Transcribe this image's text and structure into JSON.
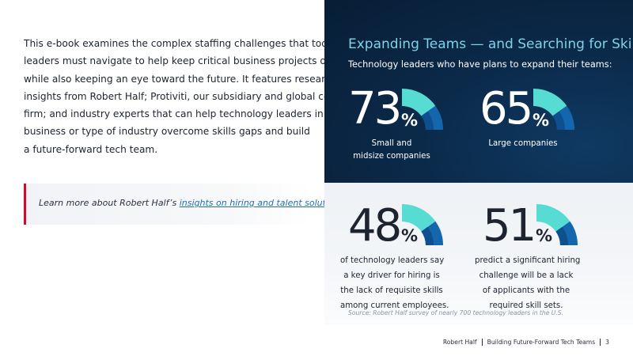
{
  "intro": {
    "lines": [
      "This e-book examines the complex staffing challenges that today’s tech",
      "leaders must navigate to help keep critical business projects on track,",
      "while also keeping an eye toward the future. It features research and",
      "insights from Robert Half; Protiviti, our subsidiary and global consulting",
      "firm; and industry experts that can help technology leaders in any size",
      "business or type of industry overcome skills gaps and build",
      "a future-forward tech team."
    ]
  },
  "callout": {
    "text": "Learn more about Robert Half’s ",
    "link": "insights on hiring and talent solutions",
    "end": "."
  },
  "panel": {
    "heading": "Expanding Teams — and Searching for Skills",
    "subheading": "Technology leaders who have plans to expand their teams:",
    "stats": [
      {
        "value": 73,
        "unit": "%",
        "label": [
          "Small and",
          "midsize companies"
        ]
      },
      {
        "value": 65,
        "unit": "%",
        "label": [
          "Large companies"
        ]
      }
    ]
  },
  "lower": {
    "stats": [
      {
        "value": 48,
        "unit": "%",
        "label": [
          "of technology leaders say",
          "a key driver for hiring is",
          "the lack of requisite skills",
          "among current employees."
        ]
      },
      {
        "value": 51,
        "unit": "%",
        "label": [
          "predict a significant hiring",
          "challenge will be a lack",
          "of applicants with the",
          "required skill sets."
        ]
      }
    ],
    "source": "Source: Robert Half survey of nearly 700 technology leaders in the U.S."
  },
  "footer": {
    "brand": "Robert Half",
    "title": "Building Future-Forward Tech Teams",
    "page": 3
  }
}
